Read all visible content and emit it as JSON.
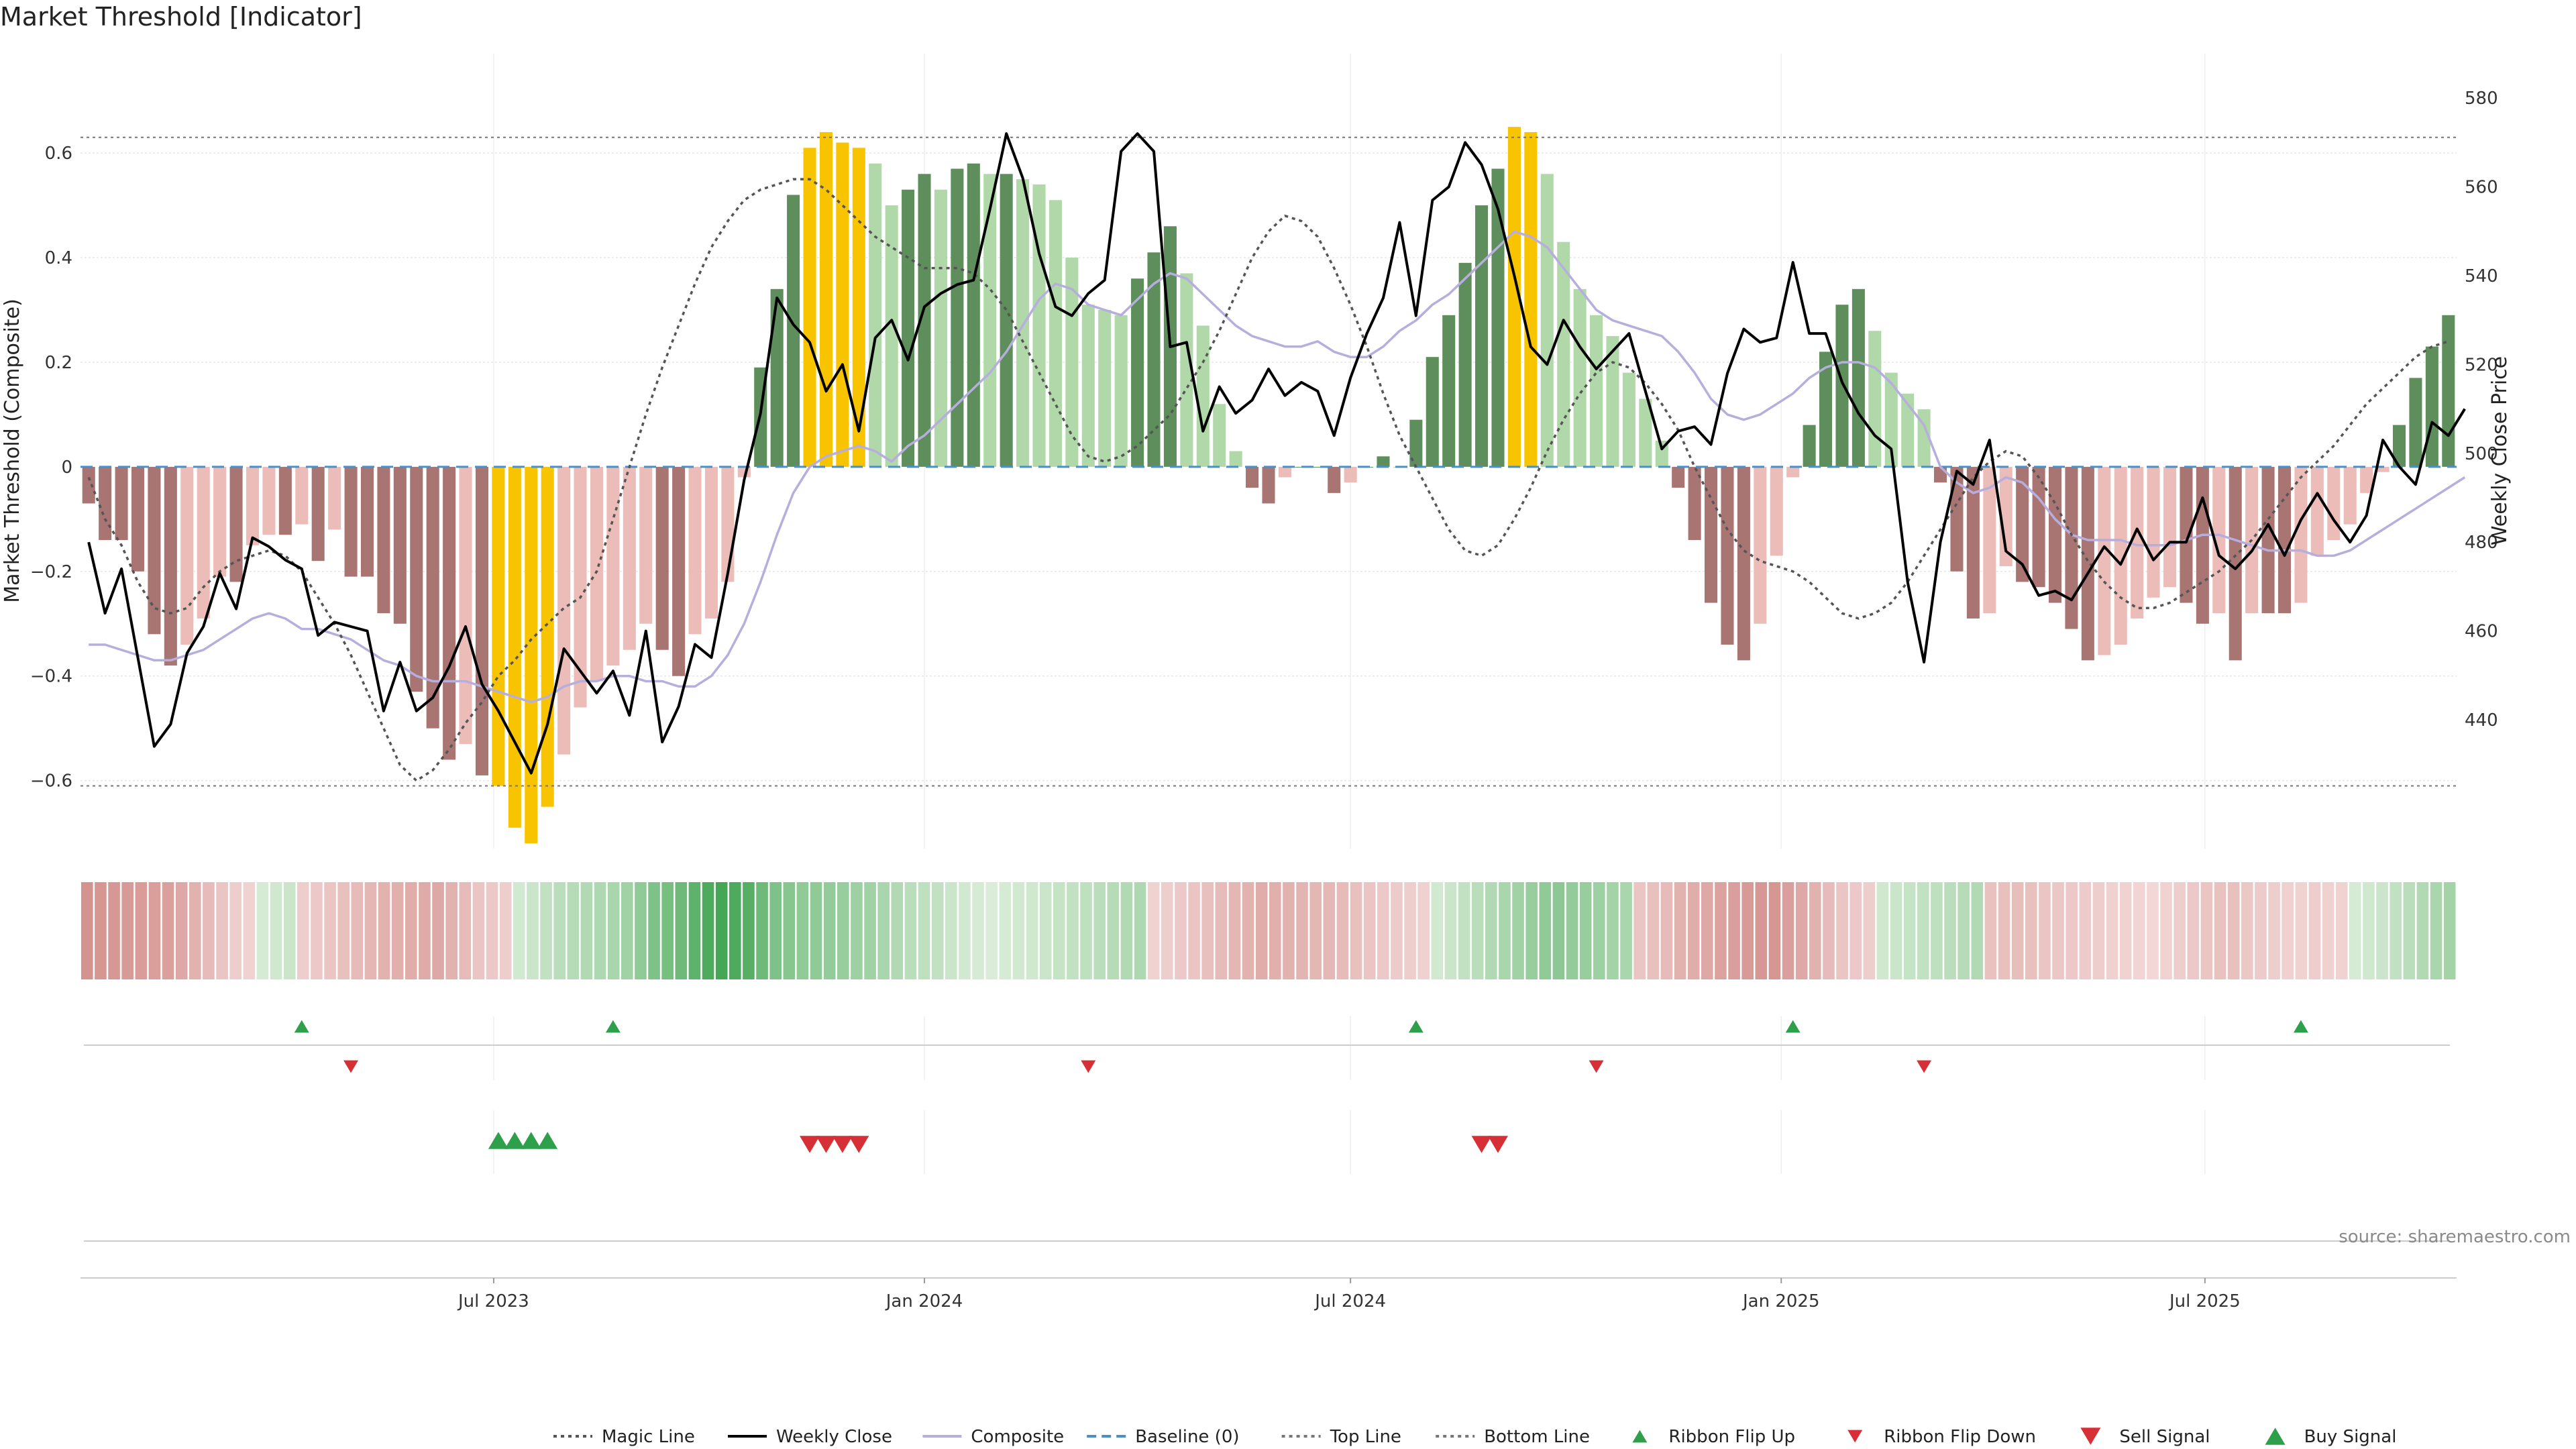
{
  "chart_data": {
    "type": "bar",
    "title": "Market Threshold [Indicator]",
    "ylabel_left": "Market Threshold (Composite)",
    "ylabel_right": "Weekly Close Price",
    "source": "source: sharemaestro.com",
    "start_date": "2023-01-09",
    "ylim_left": [
      -0.73,
      0.79
    ],
    "ylim_right": [
      411,
      590
    ],
    "y_ticks_left": [
      {
        "value": -0.6,
        "label": "−0.6"
      },
      {
        "value": -0.4,
        "label": "−0.4"
      },
      {
        "value": -0.2,
        "label": "−0.2"
      },
      {
        "value": 0,
        "label": "0"
      },
      {
        "value": 0.2,
        "label": "0.2"
      },
      {
        "value": 0.4,
        "label": "0.4"
      },
      {
        "value": 0.6,
        "label": "0.6"
      }
    ],
    "y_ticks_right": [
      {
        "value": 440,
        "label": "440"
      },
      {
        "value": 460,
        "label": "460"
      },
      {
        "value": 480,
        "label": "480"
      },
      {
        "value": 500,
        "label": "500"
      },
      {
        "value": 520,
        "label": "520"
      },
      {
        "value": 540,
        "label": "540"
      },
      {
        "value": 560,
        "label": "560"
      },
      {
        "value": 580,
        "label": "580"
      }
    ],
    "x_ticks": [
      {
        "date": "2023-07-01",
        "label": "Jul 2023"
      },
      {
        "date": "2024-01-01",
        "label": "Jan 2024"
      },
      {
        "date": "2024-07-01",
        "label": "Jul 2024"
      },
      {
        "date": "2025-01-01",
        "label": "Jan 2025"
      },
      {
        "date": "2025-07-01",
        "label": "Jul 2025"
      }
    ],
    "top_line": 0.63,
    "bottom_line": -0.61,
    "baseline": 0,
    "composite_bars": [
      -0.07,
      -0.14,
      -0.14,
      -0.2,
      -0.32,
      -0.38,
      -0.34,
      -0.29,
      -0.21,
      -0.22,
      -0.15,
      -0.13,
      -0.13,
      -0.11,
      -0.18,
      -0.12,
      -0.21,
      -0.21,
      -0.28,
      -0.3,
      -0.43,
      -0.5,
      -0.56,
      -0.53,
      -0.59,
      -0.61,
      -0.69,
      -0.72,
      -0.65,
      -0.55,
      -0.46,
      -0.41,
      -0.38,
      -0.35,
      -0.3,
      -0.35,
      -0.4,
      -0.32,
      -0.29,
      -0.22,
      -0.02,
      0.19,
      0.34,
      0.52,
      0.61,
      0.64,
      0.62,
      0.61,
      0.58,
      0.5,
      0.53,
      0.56,
      0.53,
      0.57,
      0.58,
      0.56,
      0.56,
      0.55,
      0.54,
      0.51,
      0.4,
      0.31,
      0.3,
      0.29,
      0.36,
      0.41,
      0.46,
      0.37,
      0.27,
      0.12,
      0.03,
      -0.04,
      -0.07,
      -0.02,
      0.0,
      0.0,
      -0.05,
      -0.03,
      0.0,
      0.02,
      0.0,
      0.09,
      0.21,
      0.29,
      0.39,
      0.5,
      0.57,
      0.65,
      0.64,
      0.56,
      0.43,
      0.34,
      0.29,
      0.25,
      0.18,
      0.13,
      0.05,
      -0.04,
      -0.14,
      -0.26,
      -0.34,
      -0.37,
      -0.3,
      -0.17,
      -0.02,
      0.08,
      0.22,
      0.31,
      0.34,
      0.26,
      0.18,
      0.14,
      0.11,
      -0.03,
      -0.2,
      -0.29,
      -0.28,
      -0.19,
      -0.22,
      -0.23,
      -0.26,
      -0.31,
      -0.37,
      -0.36,
      -0.34,
      -0.29,
      -0.25,
      -0.23,
      -0.26,
      -0.3,
      -0.28,
      -0.37,
      -0.28,
      -0.28,
      -0.28,
      -0.26,
      -0.17,
      -0.14,
      -0.11,
      -0.05,
      -0.01,
      0.08,
      0.17,
      0.23,
      0.29
    ],
    "weekly_close": [
      480,
      464,
      474,
      454,
      434,
      439,
      455,
      461,
      473,
      465,
      481,
      479,
      476,
      474,
      459,
      462,
      461,
      460,
      442,
      453,
      442,
      445,
      452,
      461,
      448,
      442,
      435,
      428,
      439,
      456,
      451,
      446,
      451,
      441,
      460,
      435,
      443,
      457,
      454,
      473,
      494,
      509,
      535,
      529,
      525,
      514,
      520,
      505,
      526,
      530,
      521,
      533,
      536,
      538,
      539,
      555,
      572,
      562,
      545,
      533,
      531,
      536,
      539,
      568,
      572,
      568,
      524,
      525,
      505,
      515,
      509,
      512,
      519,
      513,
      516,
      514,
      504,
      517,
      527,
      535,
      552,
      531,
      557,
      560,
      570,
      565,
      555,
      540,
      524,
      520,
      530,
      524,
      519,
      523,
      527,
      514,
      501,
      505,
      506,
      502,
      518,
      528,
      525,
      526,
      543,
      527,
      527,
      516,
      509,
      504,
      501,
      471,
      453,
      480,
      496,
      493,
      503,
      478,
      475,
      468,
      469,
      467,
      473,
      479,
      475,
      483,
      476,
      480,
      480,
      490,
      477,
      474,
      478,
      484,
      477,
      485,
      491,
      485,
      480,
      486,
      503,
      497,
      493,
      507,
      504,
      510
    ],
    "composite_line": [
      -0.34,
      -0.34,
      -0.35,
      -0.36,
      -0.37,
      -0.37,
      -0.36,
      -0.35,
      -0.33,
      -0.31,
      -0.29,
      -0.28,
      -0.29,
      -0.31,
      -0.31,
      -0.32,
      -0.33,
      -0.35,
      -0.37,
      -0.38,
      -0.4,
      -0.41,
      -0.41,
      -0.41,
      -0.42,
      -0.43,
      -0.44,
      -0.45,
      -0.44,
      -0.42,
      -0.41,
      -0.41,
      -0.4,
      -0.4,
      -0.41,
      -0.41,
      -0.42,
      -0.42,
      -0.4,
      -0.36,
      -0.3,
      -0.22,
      -0.13,
      -0.05,
      0.0,
      0.02,
      0.03,
      0.04,
      0.03,
      0.01,
      0.04,
      0.06,
      0.09,
      0.12,
      0.15,
      0.18,
      0.22,
      0.27,
      0.32,
      0.35,
      0.34,
      0.31,
      0.3,
      0.29,
      0.32,
      0.35,
      0.37,
      0.36,
      0.33,
      0.3,
      0.27,
      0.25,
      0.24,
      0.23,
      0.23,
      0.24,
      0.22,
      0.21,
      0.21,
      0.23,
      0.26,
      0.28,
      0.31,
      0.33,
      0.36,
      0.39,
      0.42,
      0.45,
      0.44,
      0.42,
      0.38,
      0.34,
      0.3,
      0.28,
      0.27,
      0.26,
      0.25,
      0.22,
      0.18,
      0.13,
      0.1,
      0.09,
      0.1,
      0.12,
      0.14,
      0.17,
      0.19,
      0.2,
      0.2,
      0.19,
      0.16,
      0.12,
      0.08,
      0.0,
      -0.03,
      -0.05,
      -0.04,
      -0.02,
      -0.03,
      -0.06,
      -0.1,
      -0.13,
      -0.14,
      -0.14,
      -0.14,
      -0.15,
      -0.15,
      -0.15,
      -0.14,
      -0.13,
      -0.13,
      -0.14,
      -0.15,
      -0.16,
      -0.16,
      -0.16,
      -0.17,
      -0.17,
      -0.16,
      -0.14,
      -0.12,
      -0.1,
      -0.08,
      -0.06,
      -0.04,
      -0.02
    ],
    "magic_line": [
      -0.02,
      -0.1,
      -0.15,
      -0.22,
      -0.27,
      -0.28,
      -0.27,
      -0.23,
      -0.2,
      -0.18,
      -0.17,
      -0.16,
      -0.17,
      -0.2,
      -0.25,
      -0.3,
      -0.36,
      -0.43,
      -0.5,
      -0.57,
      -0.6,
      -0.58,
      -0.54,
      -0.49,
      -0.45,
      -0.4,
      -0.37,
      -0.33,
      -0.3,
      -0.27,
      -0.25,
      -0.2,
      -0.1,
      0.0,
      0.1,
      0.19,
      0.27,
      0.35,
      0.42,
      0.47,
      0.51,
      0.53,
      0.54,
      0.55,
      0.55,
      0.53,
      0.5,
      0.47,
      0.44,
      0.42,
      0.4,
      0.38,
      0.38,
      0.38,
      0.37,
      0.34,
      0.3,
      0.24,
      0.18,
      0.12,
      0.06,
      0.02,
      0.01,
      0.02,
      0.04,
      0.07,
      0.1,
      0.15,
      0.2,
      0.26,
      0.33,
      0.4,
      0.45,
      0.48,
      0.47,
      0.44,
      0.38,
      0.31,
      0.23,
      0.14,
      0.06,
      0.0,
      -0.06,
      -0.12,
      -0.16,
      -0.17,
      -0.15,
      -0.1,
      -0.04,
      0.03,
      0.09,
      0.14,
      0.18,
      0.2,
      0.19,
      0.16,
      0.12,
      0.07,
      0.0,
      -0.06,
      -0.12,
      -0.16,
      -0.18,
      -0.19,
      -0.2,
      -0.22,
      -0.25,
      -0.28,
      -0.29,
      -0.28,
      -0.26,
      -0.22,
      -0.17,
      -0.12,
      -0.07,
      -0.02,
      0.01,
      0.03,
      0.02,
      -0.02,
      -0.07,
      -0.13,
      -0.18,
      -0.22,
      -0.25,
      -0.27,
      -0.27,
      -0.26,
      -0.24,
      -0.22,
      -0.2,
      -0.17,
      -0.14,
      -0.1,
      -0.06,
      -0.02,
      0.01,
      0.04,
      0.08,
      0.12,
      0.15,
      0.18,
      0.21,
      0.23,
      0.24
    ],
    "ribbon_values": [
      -0.78,
      -0.75,
      -0.72,
      -0.7,
      -0.68,
      -0.66,
      -0.64,
      -0.55,
      -0.45,
      -0.35,
      -0.25,
      -0.15,
      -0.1,
      0.08,
      0.12,
      0.15,
      -0.15,
      -0.2,
      -0.25,
      -0.3,
      -0.35,
      -0.4,
      -0.45,
      -0.48,
      -0.5,
      -0.52,
      -0.55,
      -0.45,
      -0.35,
      -0.25,
      -0.2,
      -0.15,
      0.1,
      0.15,
      0.2,
      0.25,
      0.28,
      0.3,
      0.32,
      0.35,
      0.4,
      0.5,
      0.6,
      0.65,
      0.7,
      0.8,
      0.9,
      0.95,
      0.9,
      0.85,
      0.7,
      0.6,
      0.55,
      0.5,
      0.5,
      0.48,
      0.45,
      0.42,
      0.4,
      0.35,
      0.3,
      0.25,
      0.22,
      0.2,
      0.15,
      0.1,
      0.08,
      0.05,
      0.08,
      0.1,
      0.12,
      0.15,
      0.18,
      0.2,
      0.22,
      0.25,
      0.28,
      0.3,
      0.32,
      -0.1,
      -0.15,
      -0.2,
      -0.25,
      -0.3,
      -0.35,
      -0.4,
      -0.45,
      -0.5,
      -0.48,
      -0.45,
      -0.42,
      -0.4,
      -0.38,
      -0.35,
      -0.3,
      -0.25,
      -0.2,
      -0.18,
      -0.15,
      -0.12,
      0.1,
      0.15,
      0.2,
      0.25,
      0.3,
      0.35,
      0.4,
      0.45,
      0.5,
      0.52,
      0.48,
      0.45,
      0.42,
      0.38,
      0.35,
      -0.25,
      -0.3,
      -0.35,
      -0.45,
      -0.5,
      -0.55,
      -0.62,
      -0.65,
      -0.7,
      -0.72,
      -0.75,
      -0.65,
      -0.55,
      -0.45,
      -0.35,
      -0.25,
      -0.2,
      -0.15,
      0.12,
      0.15,
      0.18,
      0.2,
      0.22,
      0.25,
      0.28,
      0.3,
      -0.28,
      -0.3,
      -0.32,
      -0.3,
      -0.25,
      -0.22,
      -0.2,
      -0.18,
      -0.15,
      -0.12,
      -0.1,
      -0.08,
      -0.05,
      -0.1,
      -0.15,
      -0.2,
      -0.25,
      -0.28,
      -0.3,
      -0.22,
      -0.18,
      -0.15,
      -0.12,
      -0.1,
      -0.15,
      -0.12,
      -0.1,
      0.08,
      0.12,
      0.15,
      0.2,
      0.25,
      0.3,
      0.35,
      0.38
    ],
    "ribbon_flip_up_weeks": [
      13,
      32,
      81,
      104,
      135
    ],
    "ribbon_flip_down_weeks": [
      16,
      61,
      92,
      112
    ],
    "buy_signal_weeks": [
      25,
      26,
      27,
      28
    ],
    "sell_signal_weeks": [
      44,
      45,
      46,
      47,
      85,
      86
    ],
    "colors": {
      "strong_negative": "#a87573",
      "weak_negative": "#ecbcb8",
      "strong_positive": "#5d8e5b",
      "weak_positive": "#b0d8a8",
      "extreme": "#f8c400",
      "weekly_close": "#000000",
      "composite_line": "#b7aedd",
      "magic_line": "#555555",
      "baseline": "#4c8fc4",
      "threshold_lines": "#777777",
      "signal_buy": "#2ea04b",
      "signal_sell": "#d62f36"
    },
    "legend": [
      {
        "label": "Magic Line",
        "symbol": "dotted",
        "color": "#555555"
      },
      {
        "label": "Weekly Close",
        "symbol": "solid",
        "color": "#000000"
      },
      {
        "label": "Composite",
        "symbol": "solid",
        "color": "#b7aedd"
      },
      {
        "label": "Baseline (0)",
        "symbol": "dashed",
        "color": "#4c8fc4"
      },
      {
        "label": "Top Line",
        "symbol": "dotted",
        "color": "#777777"
      },
      {
        "label": "Bottom Line",
        "symbol": "dotted",
        "color": "#777777"
      },
      {
        "label": "Ribbon Flip Up",
        "symbol": "tri-up-small",
        "color": "#2ea04b"
      },
      {
        "label": "Ribbon Flip Down",
        "symbol": "tri-down-small",
        "color": "#d62f36"
      },
      {
        "label": "Sell Signal",
        "symbol": "tri-down",
        "color": "#d62f36"
      },
      {
        "label": "Buy Signal",
        "symbol": "tri-up",
        "color": "#2ea04b"
      }
    ]
  }
}
